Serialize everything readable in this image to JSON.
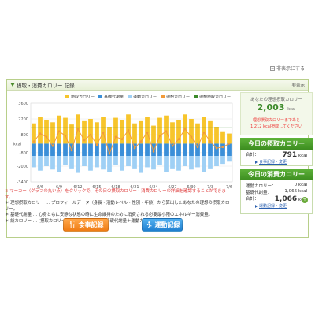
{
  "top_link": {
    "label": "非表示にする"
  },
  "panel": {
    "title": "摂取・消費カロリー 記録",
    "right_label": "非表示"
  },
  "legend": [
    {
      "label": "摂取カロリー",
      "color": "#f7c52c"
    },
    {
      "label": "基礎代謝量",
      "color": "#3b8fd8"
    },
    {
      "label": "運動カロリー",
      "color": "#9fd0f5"
    },
    {
      "label": "理想カロリー",
      "color": "#f29a3a"
    },
    {
      "label": "理想摂取カロリー",
      "color": "#3c8a2a"
    }
  ],
  "chart_data": {
    "type": "bar",
    "ylabel": "kcal",
    "yticks": [
      3600,
      2200,
      800,
      -800,
      -2000,
      -3400
    ],
    "ylim": [
      -3400,
      3600
    ],
    "categories": [
      "6/5",
      "6/6",
      "6/7",
      "6/8",
      "6/9",
      "6/10",
      "6/11",
      "6/12",
      "6/13",
      "6/14",
      "6/15",
      "6/16",
      "6/17",
      "6/18",
      "6/19",
      "6/20",
      "6/21",
      "6/22",
      "6/23",
      "6/24",
      "6/25",
      "6/26",
      "6/27",
      "6/28",
      "6/29",
      "6/30",
      "7/1",
      "7/2",
      "7/3",
      "7/4",
      "7/5",
      "7/6"
    ],
    "xtick_labels": [
      "6/6",
      "6/9",
      "6/12",
      "6/15",
      "6/18",
      "6/21",
      "6/24",
      "6/27",
      "6/30",
      "7/3",
      "7/6"
    ],
    "series": [
      {
        "name": "摂取カロリー",
        "values": [
          1800,
          2400,
          2100,
          1900,
          2500,
          2300,
          1700,
          2600,
          2000,
          2200,
          1900,
          2400,
          1500,
          2300,
          2100,
          2600,
          1800,
          2000,
          2400,
          1600,
          2300,
          2500,
          1900,
          2100,
          2600,
          2200,
          1800,
          2400,
          2000,
          1500,
          1100,
          900
        ]
      },
      {
        "name": "基礎代謝量",
        "values": [
          -1100,
          -1100,
          -1100,
          -1100,
          -1100,
          -1100,
          -1100,
          -1100,
          -1100,
          -1100,
          -1100,
          -1100,
          -1100,
          -1100,
          -1100,
          -1100,
          -1100,
          -1100,
          -1100,
          -1100,
          -1100,
          -1100,
          -1100,
          -1100,
          -1100,
          -1100,
          -1100,
          -1100,
          -1100,
          -1100,
          -1100,
          -1100
        ]
      },
      {
        "name": "運動カロリー",
        "values": [
          -1000,
          -1300,
          -900,
          -1200,
          -1400,
          -800,
          -1100,
          -1500,
          -900,
          -1300,
          -1000,
          -1200,
          -1400,
          -800,
          -1300,
          -900,
          -1100,
          -1500,
          -1000,
          -1200,
          -800,
          -1400,
          -1100,
          -1300,
          -900,
          -1200,
          -1000,
          -1400,
          -1100,
          -900,
          -700,
          -500
        ]
      },
      {
        "name": "理想カロリー",
        "values": [
          200,
          900,
          600,
          -200,
          1100,
          700,
          -600,
          1300,
          300,
          800,
          -100,
          1000,
          -900,
          600,
          400,
          1200,
          -400,
          200,
          1000,
          -700,
          700,
          1100,
          -200,
          400,
          1300,
          600,
          -300,
          1000,
          200,
          -400,
          -300,
          0
        ]
      }
    ],
    "ideal_line": 1400,
    "grid": true
  },
  "notes": {
    "line1": "※ マーカー（グラフの丸い点）をクリックで、その日の摂取カロリー・消費カロリーの詳細を確認することができます。",
    "line2": "＊ 理想摂取カロリー … プロフィールデータ（身長・活動レベル・性別・年齢）から算出したあなたの理想の摂取カロリー。",
    "line3": "＊ 基礎代謝量 … 心身ともに安静な状態の時に生命維持のために消費される必要最小限のエネルギー消費量。",
    "line4": "＊ 総カロリー … [摂取カロリー] － [消費カロリー（基礎代謝量＋運動カロリー）]"
  },
  "buttons": {
    "food": "食事記録",
    "exercise": "運動記録"
  },
  "side": {
    "remaining_label": "あなたの理想摂取カロリー",
    "remaining_value": "2,003",
    "unit": "kcal",
    "warn1": "理想摂取カロリーまであと",
    "warn2": "1,212 kcal摂取してください",
    "intake_head": "今日の摂取カロリー",
    "total_label": "合計：",
    "intake_value": "791",
    "intake_link": "食事記録・変更",
    "burn_head": "今日の消費カロリー",
    "exercise_label": "運動カロリー：",
    "exercise_value": "0 kcal",
    "basal_label": "基礎代謝量：",
    "basal_value": "1,066 kcal",
    "burn_total": "1,066",
    "burn_link": "運動記録・変更"
  }
}
